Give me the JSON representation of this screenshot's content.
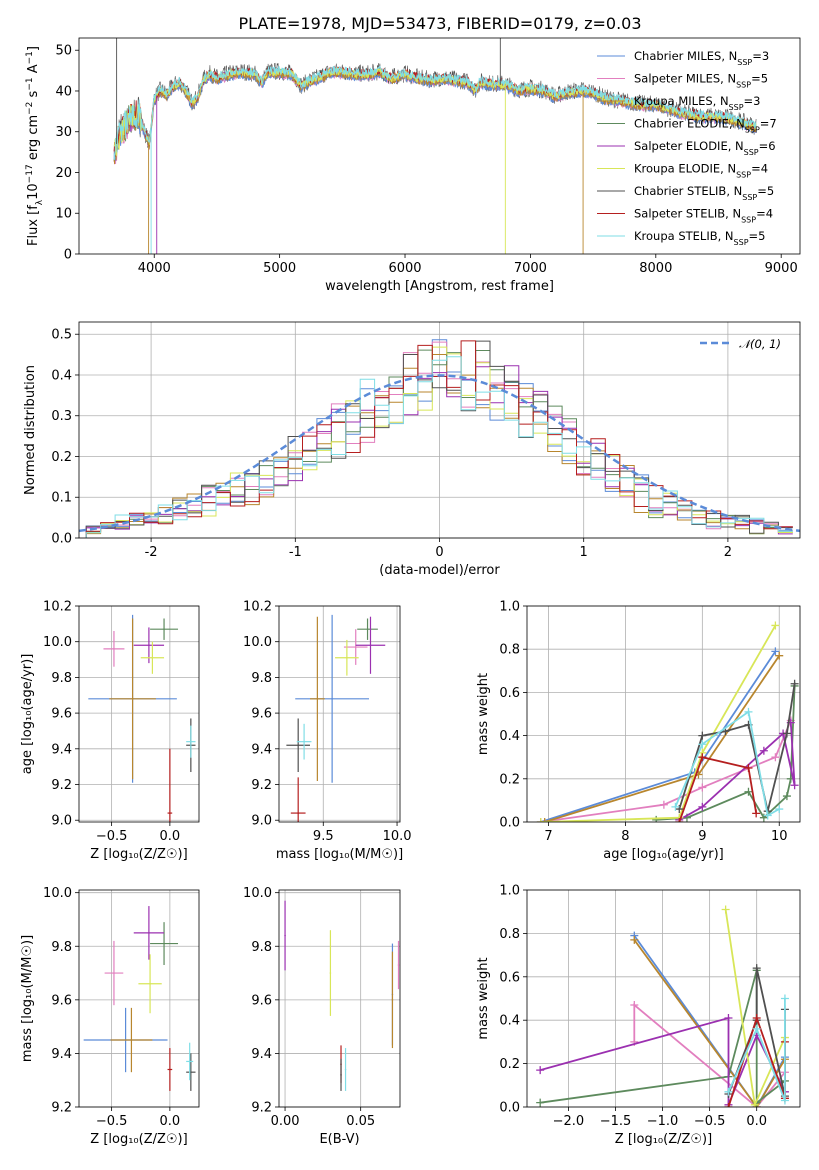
{
  "title": "PLATE=1978, MJD=53473, FIBERID=0179, z=0.03",
  "series": [
    {
      "name": "Chabrier MILES, N",
      "sub": "SSP",
      "tail": "=3",
      "color": "#5b8bd8"
    },
    {
      "name": "Salpeter MILES, N",
      "sub": "SSP",
      "tail": "=5",
      "color": "#e27fbf"
    },
    {
      "name": "Kroupa MILES, N",
      "sub": "SSP",
      "tail": "=3",
      "color": "#b8862e"
    },
    {
      "name": "Chabrier ELODIE, N",
      "sub": "SSP",
      "tail": "=7",
      "color": "#5d8a5d"
    },
    {
      "name": "Salpeter ELODIE, N",
      "sub": "SSP",
      "tail": "=6",
      "color": "#9b30b0"
    },
    {
      "name": "Kroupa ELODIE, N",
      "sub": "SSP",
      "tail": "=4",
      "color": "#d8e658"
    },
    {
      "name": "Chabrier STELIB, N",
      "sub": "SSP",
      "tail": "=5",
      "color": "#505050"
    },
    {
      "name": "Salpeter STELIB, N",
      "sub": "SSP",
      "tail": "=4",
      "color": "#b51f1f"
    },
    {
      "name": "Kroupa STELIB, N",
      "sub": "SSP",
      "tail": "=5",
      "color": "#7fdde6"
    }
  ],
  "chart_data": [
    {
      "id": "spectrum",
      "type": "line",
      "xlabel": "wavelength [Angstrom, rest frame]",
      "ylabel_parts": {
        "pre": "Flux [f",
        "lam": "λ",
        "mid": "10",
        "e1": "−17",
        "mid2": " erg cm",
        "e2": "−2",
        "mid3": " s",
        "e3": "−1",
        "mid4": " A",
        "e4": "−1",
        "post": "]"
      },
      "xlim": [
        3400,
        9150
      ],
      "ylim": [
        0,
        53
      ],
      "xticks": [
        4000,
        5000,
        6000,
        7000,
        8000,
        9000
      ],
      "yticks": [
        0,
        10,
        20,
        30,
        40,
        50
      ],
      "x": [
        3680,
        3720,
        3760,
        3800,
        3840,
        3880,
        3920,
        3960,
        4000,
        4050,
        4100,
        4150,
        4200,
        4250,
        4300,
        4340,
        4400,
        4450,
        4500,
        4600,
        4700,
        4800,
        4861,
        4900,
        5000,
        5100,
        5175,
        5250,
        5300,
        5400,
        5500,
        5600,
        5700,
        5800,
        5890,
        5950,
        6000,
        6100,
        6200,
        6300,
        6400,
        6500,
        6563,
        6600,
        6700,
        6800,
        6900,
        7000,
        7100,
        7200,
        7300,
        7400,
        7500,
        7600,
        7700,
        7800,
        7900,
        8000,
        8100,
        8200,
        8300,
        8400,
        8500,
        8600,
        8700,
        8800
      ],
      "y": [
        25,
        29,
        31,
        33,
        34,
        34,
        30,
        27,
        38,
        40,
        39,
        41,
        42,
        40,
        37,
        38,
        43,
        44,
        43,
        44,
        44.5,
        44,
        42,
        44.5,
        44.5,
        44,
        41,
        42.5,
        43,
        44.5,
        44.5,
        44,
        44,
        44.5,
        43,
        43.5,
        44,
        43,
        42.5,
        43,
        42.5,
        42,
        40,
        42,
        41.5,
        41.5,
        40,
        40.5,
        40,
        38.5,
        39.5,
        40,
        39.5,
        38,
        37.5,
        37,
        36.5,
        36.5,
        35.5,
        34.5,
        34,
        33.5,
        33.5,
        33,
        32,
        31
      ]
    },
    {
      "id": "residuals",
      "type": "histogram",
      "xlabel": "(data-model)/error",
      "ylabel": "Normed distribution",
      "xlim": [
        -2.5,
        2.5
      ],
      "ylim": [
        0,
        0.53
      ],
      "xticks": [
        -2,
        -1,
        0,
        1,
        2
      ],
      "yticks": [
        0.0,
        0.1,
        0.2,
        0.3,
        0.4,
        0.5
      ],
      "legend": "𝒩(0, 1)",
      "legend_location": "upper right",
      "bins": [
        -2.4,
        -2.3,
        -2.2,
        -2.1,
        -2.0,
        -1.9,
        -1.8,
        -1.7,
        -1.6,
        -1.5,
        -1.4,
        -1.3,
        -1.2,
        -1.1,
        -1.0,
        -0.9,
        -0.8,
        -0.7,
        -0.6,
        -0.5,
        -0.4,
        -0.3,
        -0.2,
        -0.1,
        0.0,
        0.1,
        0.2,
        0.3,
        0.4,
        0.5,
        0.6,
        0.7,
        0.8,
        0.9,
        1.0,
        1.1,
        1.2,
        1.3,
        1.4,
        1.5,
        1.6,
        1.7,
        1.8,
        1.9,
        2.0,
        2.1,
        2.2,
        2.3,
        2.4
      ],
      "heights": [
        0.02,
        0.03,
        0.04,
        0.05,
        0.05,
        0.06,
        0.07,
        0.08,
        0.09,
        0.1,
        0.12,
        0.13,
        0.15,
        0.17,
        0.19,
        0.21,
        0.23,
        0.26,
        0.28,
        0.31,
        0.34,
        0.36,
        0.38,
        0.4,
        0.41,
        0.41,
        0.4,
        0.39,
        0.37,
        0.35,
        0.32,
        0.3,
        0.27,
        0.24,
        0.21,
        0.19,
        0.16,
        0.13,
        0.11,
        0.09,
        0.08,
        0.07,
        0.06,
        0.05,
        0.04,
        0.04,
        0.03,
        0.03,
        0.02
      ],
      "spread": [
        0.01,
        0.01,
        0.02,
        0.02,
        0.02,
        0.03,
        0.03,
        0.03,
        0.04,
        0.04,
        0.05,
        0.05,
        0.06,
        0.06,
        0.06,
        0.07,
        0.07,
        0.07,
        0.08,
        0.08,
        0.08,
        0.09,
        0.1,
        0.09,
        0.08,
        0.08,
        0.09,
        0.1,
        0.09,
        0.08,
        0.08,
        0.07,
        0.07,
        0.06,
        0.06,
        0.06,
        0.05,
        0.05,
        0.05,
        0.04,
        0.04,
        0.03,
        0.03,
        0.03,
        0.02,
        0.02,
        0.02,
        0.01,
        0.01
      ]
    },
    {
      "id": "age-vs-Z",
      "type": "scatter",
      "xlabel": "Z [log₁₀(Z/Z☉)]",
      "ylabel": "age  [log₁₀(age/yr)]",
      "xlim": [
        -0.78,
        0.25
      ],
      "ylim": [
        8.99,
        10.2
      ],
      "xticks": [
        -0.5,
        0.0
      ],
      "xtick_labels": [
        "−0.5",
        "0.0"
      ],
      "yticks": [
        9.0,
        9.2,
        9.4,
        9.6,
        9.8,
        10.0,
        10.2
      ],
      "ytick_labels": [
        "9.0",
        "9.2",
        "9.4",
        "9.6",
        "9.8",
        "10.0",
        "10.2"
      ],
      "points": [
        {
          "x": -0.32,
          "y": 9.68,
          "xerr": 0.38,
          "yerr": 0.47,
          "series": 0
        },
        {
          "x": -0.48,
          "y": 9.96,
          "xerr": 0.09,
          "yerr": 0.1,
          "series": 1
        },
        {
          "x": -0.32,
          "y": 9.68,
          "xerr": 0.2,
          "yerr": 0.45,
          "series": 2
        },
        {
          "x": -0.05,
          "y": 10.07,
          "xerr": 0.12,
          "yerr": 0.06,
          "series": 3
        },
        {
          "x": -0.18,
          "y": 9.98,
          "xerr": 0.13,
          "yerr": 0.1,
          "series": 4
        },
        {
          "x": -0.15,
          "y": 9.91,
          "xerr": 0.1,
          "yerr": 0.09,
          "series": 5
        },
        {
          "x": 0.18,
          "y": 9.42,
          "xerr": 0.04,
          "yerr": 0.15,
          "series": 6
        },
        {
          "x": 0.0,
          "y": 9.04,
          "xerr": 0.02,
          "yerr": 0.36,
          "series": 7
        },
        {
          "x": 0.18,
          "y": 9.44,
          "xerr": 0.04,
          "yerr": 0.09,
          "series": 8
        }
      ]
    },
    {
      "id": "age-vs-mass",
      "type": "scatter",
      "xlabel": "mass [log₁₀(M/M☉)]",
      "ylabel": "",
      "xlim": [
        9.2,
        10.02
      ],
      "ylim": [
        8.99,
        10.2
      ],
      "xticks": [
        9.5,
        10.0
      ],
      "xtick_labels": [
        "9.5",
        "10.0"
      ],
      "yticks": [
        9.0,
        9.2,
        9.4,
        9.6,
        9.8,
        10.0,
        10.2
      ],
      "ytick_labels": [
        "9.0",
        "9.2",
        "9.4",
        "9.6",
        "9.8",
        "10.0",
        "10.2"
      ],
      "points": [
        {
          "x": 9.56,
          "y": 9.68,
          "xerr": 0.25,
          "yerr": 0.47,
          "series": 0
        },
        {
          "x": 9.72,
          "y": 9.97,
          "xerr": 0.08,
          "yerr": 0.1,
          "series": 1
        },
        {
          "x": 9.46,
          "y": 9.68,
          "xerr": 0.05,
          "yerr": 0.46,
          "series": 2
        },
        {
          "x": 9.8,
          "y": 10.07,
          "xerr": 0.07,
          "yerr": 0.06,
          "series": 3
        },
        {
          "x": 9.82,
          "y": 9.98,
          "xerr": 0.1,
          "yerr": 0.16,
          "series": 4
        },
        {
          "x": 9.66,
          "y": 9.91,
          "xerr": 0.08,
          "yerr": 0.1,
          "series": 5
        },
        {
          "x": 9.33,
          "y": 9.42,
          "xerr": 0.08,
          "yerr": 0.15,
          "series": 6
        },
        {
          "x": 9.33,
          "y": 9.04,
          "xerr": 0.05,
          "yerr": 0.2,
          "series": 7
        },
        {
          "x": 9.37,
          "y": 9.44,
          "xerr": 0.05,
          "yerr": 0.1,
          "series": 8
        }
      ]
    },
    {
      "id": "weight-vs-age",
      "type": "line",
      "xlabel": "age  [log₁₀(age/yr)]",
      "ylabel": "mass weight",
      "xlim": [
        6.72,
        10.27
      ],
      "ylim": [
        0,
        1.0
      ],
      "xticks": [
        7,
        8,
        9,
        10
      ],
      "xtick_labels": [
        "7",
        "8",
        "9",
        "10"
      ],
      "yticks": [
        0.0,
        0.2,
        0.4,
        0.6,
        0.8,
        1.0
      ],
      "ytick_labels": [
        "0.0",
        "0.2",
        "0.4",
        "0.6",
        "0.8",
        "1.0"
      ],
      "lines": [
        {
          "series": 0,
          "x": [
            6.9,
            8.9,
            9.95
          ],
          "y": [
            0.0,
            0.23,
            0.79
          ]
        },
        {
          "series": 1,
          "x": [
            6.9,
            8.5,
            9.0,
            9.95,
            10.15
          ],
          "y": [
            0.0,
            0.08,
            0.16,
            0.3,
            0.47
          ]
        },
        {
          "series": 2,
          "x": [
            6.95,
            8.95,
            10.0
          ],
          "y": [
            0.0,
            0.22,
            0.77
          ]
        },
        {
          "series": 3,
          "x": [
            8.4,
            8.8,
            9.6,
            9.8,
            10.1,
            10.15,
            10.2
          ],
          "y": [
            0.01,
            0.02,
            0.14,
            0.02,
            0.12,
            0.2,
            0.63
          ]
        },
        {
          "series": 4,
          "x": [
            8.7,
            9.0,
            9.8,
            10.05,
            10.2,
            10.15
          ],
          "y": [
            0.01,
            0.07,
            0.33,
            0.41,
            0.17,
            0.46
          ]
        },
        {
          "series": 5,
          "x": [
            6.9,
            8.7,
            9.0,
            9.95
          ],
          "y": [
            0.0,
            0.02,
            0.32,
            0.91
          ]
        },
        {
          "series": 6,
          "x": [
            8.7,
            9.0,
            9.3,
            9.6,
            9.85,
            10.1,
            10.2
          ],
          "y": [
            0.06,
            0.4,
            0.42,
            0.45,
            0.05,
            0.41,
            0.64
          ]
        },
        {
          "series": 7,
          "x": [
            8.7,
            9.0,
            9.6,
            9.7
          ],
          "y": [
            0.0,
            0.3,
            0.25,
            0.04
          ]
        },
        {
          "series": 8,
          "x": [
            8.65,
            9.0,
            9.6,
            9.85,
            10.0
          ],
          "y": [
            0.07,
            0.36,
            0.51,
            0.03,
            0.06
          ]
        }
      ]
    },
    {
      "id": "mass-vs-Z",
      "type": "scatter",
      "xlabel": "Z [log₁₀(Z/Z☉)]",
      "ylabel": "mass [log₁₀(M/M☉)]",
      "xlim": [
        -0.78,
        0.25
      ],
      "ylim": [
        9.2,
        10.01
      ],
      "xticks": [
        -0.5,
        0.0
      ],
      "xtick_labels": [
        "−0.5",
        "0.0"
      ],
      "yticks": [
        9.2,
        9.4,
        9.6,
        9.8,
        10.0
      ],
      "ytick_labels": [
        "9.2",
        "9.4",
        "9.6",
        "9.8",
        "10.0"
      ],
      "points": [
        {
          "x": -0.38,
          "y": 9.45,
          "xerr": 0.36,
          "yerr": 0.12,
          "series": 0
        },
        {
          "x": -0.48,
          "y": 9.7,
          "xerr": 0.08,
          "yerr": 0.12,
          "series": 1
        },
        {
          "x": -0.33,
          "y": 9.45,
          "xerr": 0.18,
          "yerr": 0.12,
          "series": 2
        },
        {
          "x": -0.05,
          "y": 9.81,
          "xerr": 0.12,
          "yerr": 0.08,
          "series": 3
        },
        {
          "x": -0.18,
          "y": 9.85,
          "xerr": 0.13,
          "yerr": 0.1,
          "series": 4
        },
        {
          "x": -0.17,
          "y": 9.66,
          "xerr": 0.1,
          "yerr": 0.11,
          "series": 5
        },
        {
          "x": 0.18,
          "y": 9.33,
          "xerr": 0.04,
          "yerr": 0.07,
          "series": 6
        },
        {
          "x": 0.0,
          "y": 9.34,
          "xerr": 0.02,
          "yerr": 0.08,
          "series": 7
        },
        {
          "x": 0.17,
          "y": 9.37,
          "xerr": 0.03,
          "yerr": 0.07,
          "series": 8
        }
      ]
    },
    {
      "id": "ebv",
      "type": "scatter",
      "xlabel": "E(B-V)",
      "ylabel": "",
      "xlim": [
        -0.004,
        0.076
      ],
      "ylim": [
        9.2,
        10.01
      ],
      "xticks": [
        0.0,
        0.05
      ],
      "xtick_labels": [
        "0.00",
        "0.05"
      ],
      "yticks": [
        9.2,
        9.4,
        9.6,
        9.8,
        10.0
      ],
      "ytick_labels": [
        "9.2",
        "9.4",
        "9.6",
        "9.8",
        "10.0"
      ],
      "points": [
        {
          "x": 0.0,
          "y": 9.84,
          "xerr": 0.0,
          "yerr": 0.13,
          "series": 4
        },
        {
          "x": 0.03,
          "y": 9.7,
          "xerr": 0.0,
          "yerr": 0.16,
          "series": 5
        },
        {
          "x": 0.037,
          "y": 9.36,
          "xerr": 0.0,
          "yerr": 0.07,
          "series": 7
        },
        {
          "x": 0.037,
          "y": 9.32,
          "xerr": 0.0,
          "yerr": 0.06,
          "series": 6
        },
        {
          "x": 0.04,
          "y": 9.34,
          "xerr": 0.0,
          "yerr": 0.08,
          "series": 8
        },
        {
          "x": 0.071,
          "y": 9.62,
          "xerr": 0.0,
          "yerr": 0.19,
          "series": 0
        },
        {
          "x": 0.071,
          "y": 9.6,
          "xerr": 0.0,
          "yerr": 0.18,
          "series": 2
        },
        {
          "x": 0.075,
          "y": 9.73,
          "xerr": 0.0,
          "yerr": 0.09,
          "series": 1
        }
      ]
    },
    {
      "id": "weight-vs-Z",
      "type": "line",
      "xlabel": "Z [log₁₀(Z/Z☉)]",
      "ylabel": "mass weight",
      "xlim": [
        -2.44,
        0.46
      ],
      "ylim": [
        0,
        1.0
      ],
      "xticks": [
        -2.0,
        -1.5,
        -1.0,
        -0.5,
        0.0
      ],
      "xtick_labels": [
        "−2.0",
        "−1.5",
        "−1.0",
        "−0.5",
        "0.0"
      ],
      "yticks": [
        0.0,
        0.2,
        0.4,
        0.6,
        0.8,
        1.0
      ],
      "ytick_labels": [
        "0.0",
        "0.2",
        "0.4",
        "0.6",
        "0.8",
        "1.0"
      ],
      "lines": [
        {
          "series": 0,
          "x": [
            -1.3,
            0.0,
            0.3
          ],
          "y": [
            0.79,
            0.0,
            0.23
          ]
        },
        {
          "series": 1,
          "x": [
            -1.3,
            -1.3,
            0.0,
            0.3
          ],
          "y": [
            0.3,
            0.47,
            0.0,
            0.16
          ]
        },
        {
          "series": 2,
          "x": [
            -1.3,
            0.0,
            0.3
          ],
          "y": [
            0.77,
            0.0,
            0.22
          ]
        },
        {
          "series": 3,
          "x": [
            -2.3,
            -0.3,
            0.0,
            0.0,
            0.3
          ],
          "y": [
            0.02,
            0.14,
            0.63,
            0.02,
            0.12
          ]
        },
        {
          "series": 4,
          "x": [
            -2.3,
            -0.3,
            -0.3,
            0.0,
            0.3
          ],
          "y": [
            0.17,
            0.41,
            0.01,
            0.33,
            0.07
          ]
        },
        {
          "series": 5,
          "x": [
            -0.33,
            -0.02,
            0.3
          ],
          "y": [
            0.91,
            0.01,
            0.32
          ]
        },
        {
          "series": 6,
          "x": [
            -0.3,
            0.0,
            0.0,
            0.3,
            0.3
          ],
          "y": [
            0.06,
            0.4,
            0.64,
            0.05,
            0.45
          ]
        },
        {
          "series": 7,
          "x": [
            -0.3,
            0.0,
            0.3,
            0.3
          ],
          "y": [
            0.0,
            0.41,
            0.04,
            0.3
          ]
        },
        {
          "series": 8,
          "x": [
            -0.3,
            0.0,
            0.3,
            0.3
          ],
          "y": [
            0.07,
            0.36,
            0.03,
            0.5
          ]
        }
      ]
    }
  ]
}
